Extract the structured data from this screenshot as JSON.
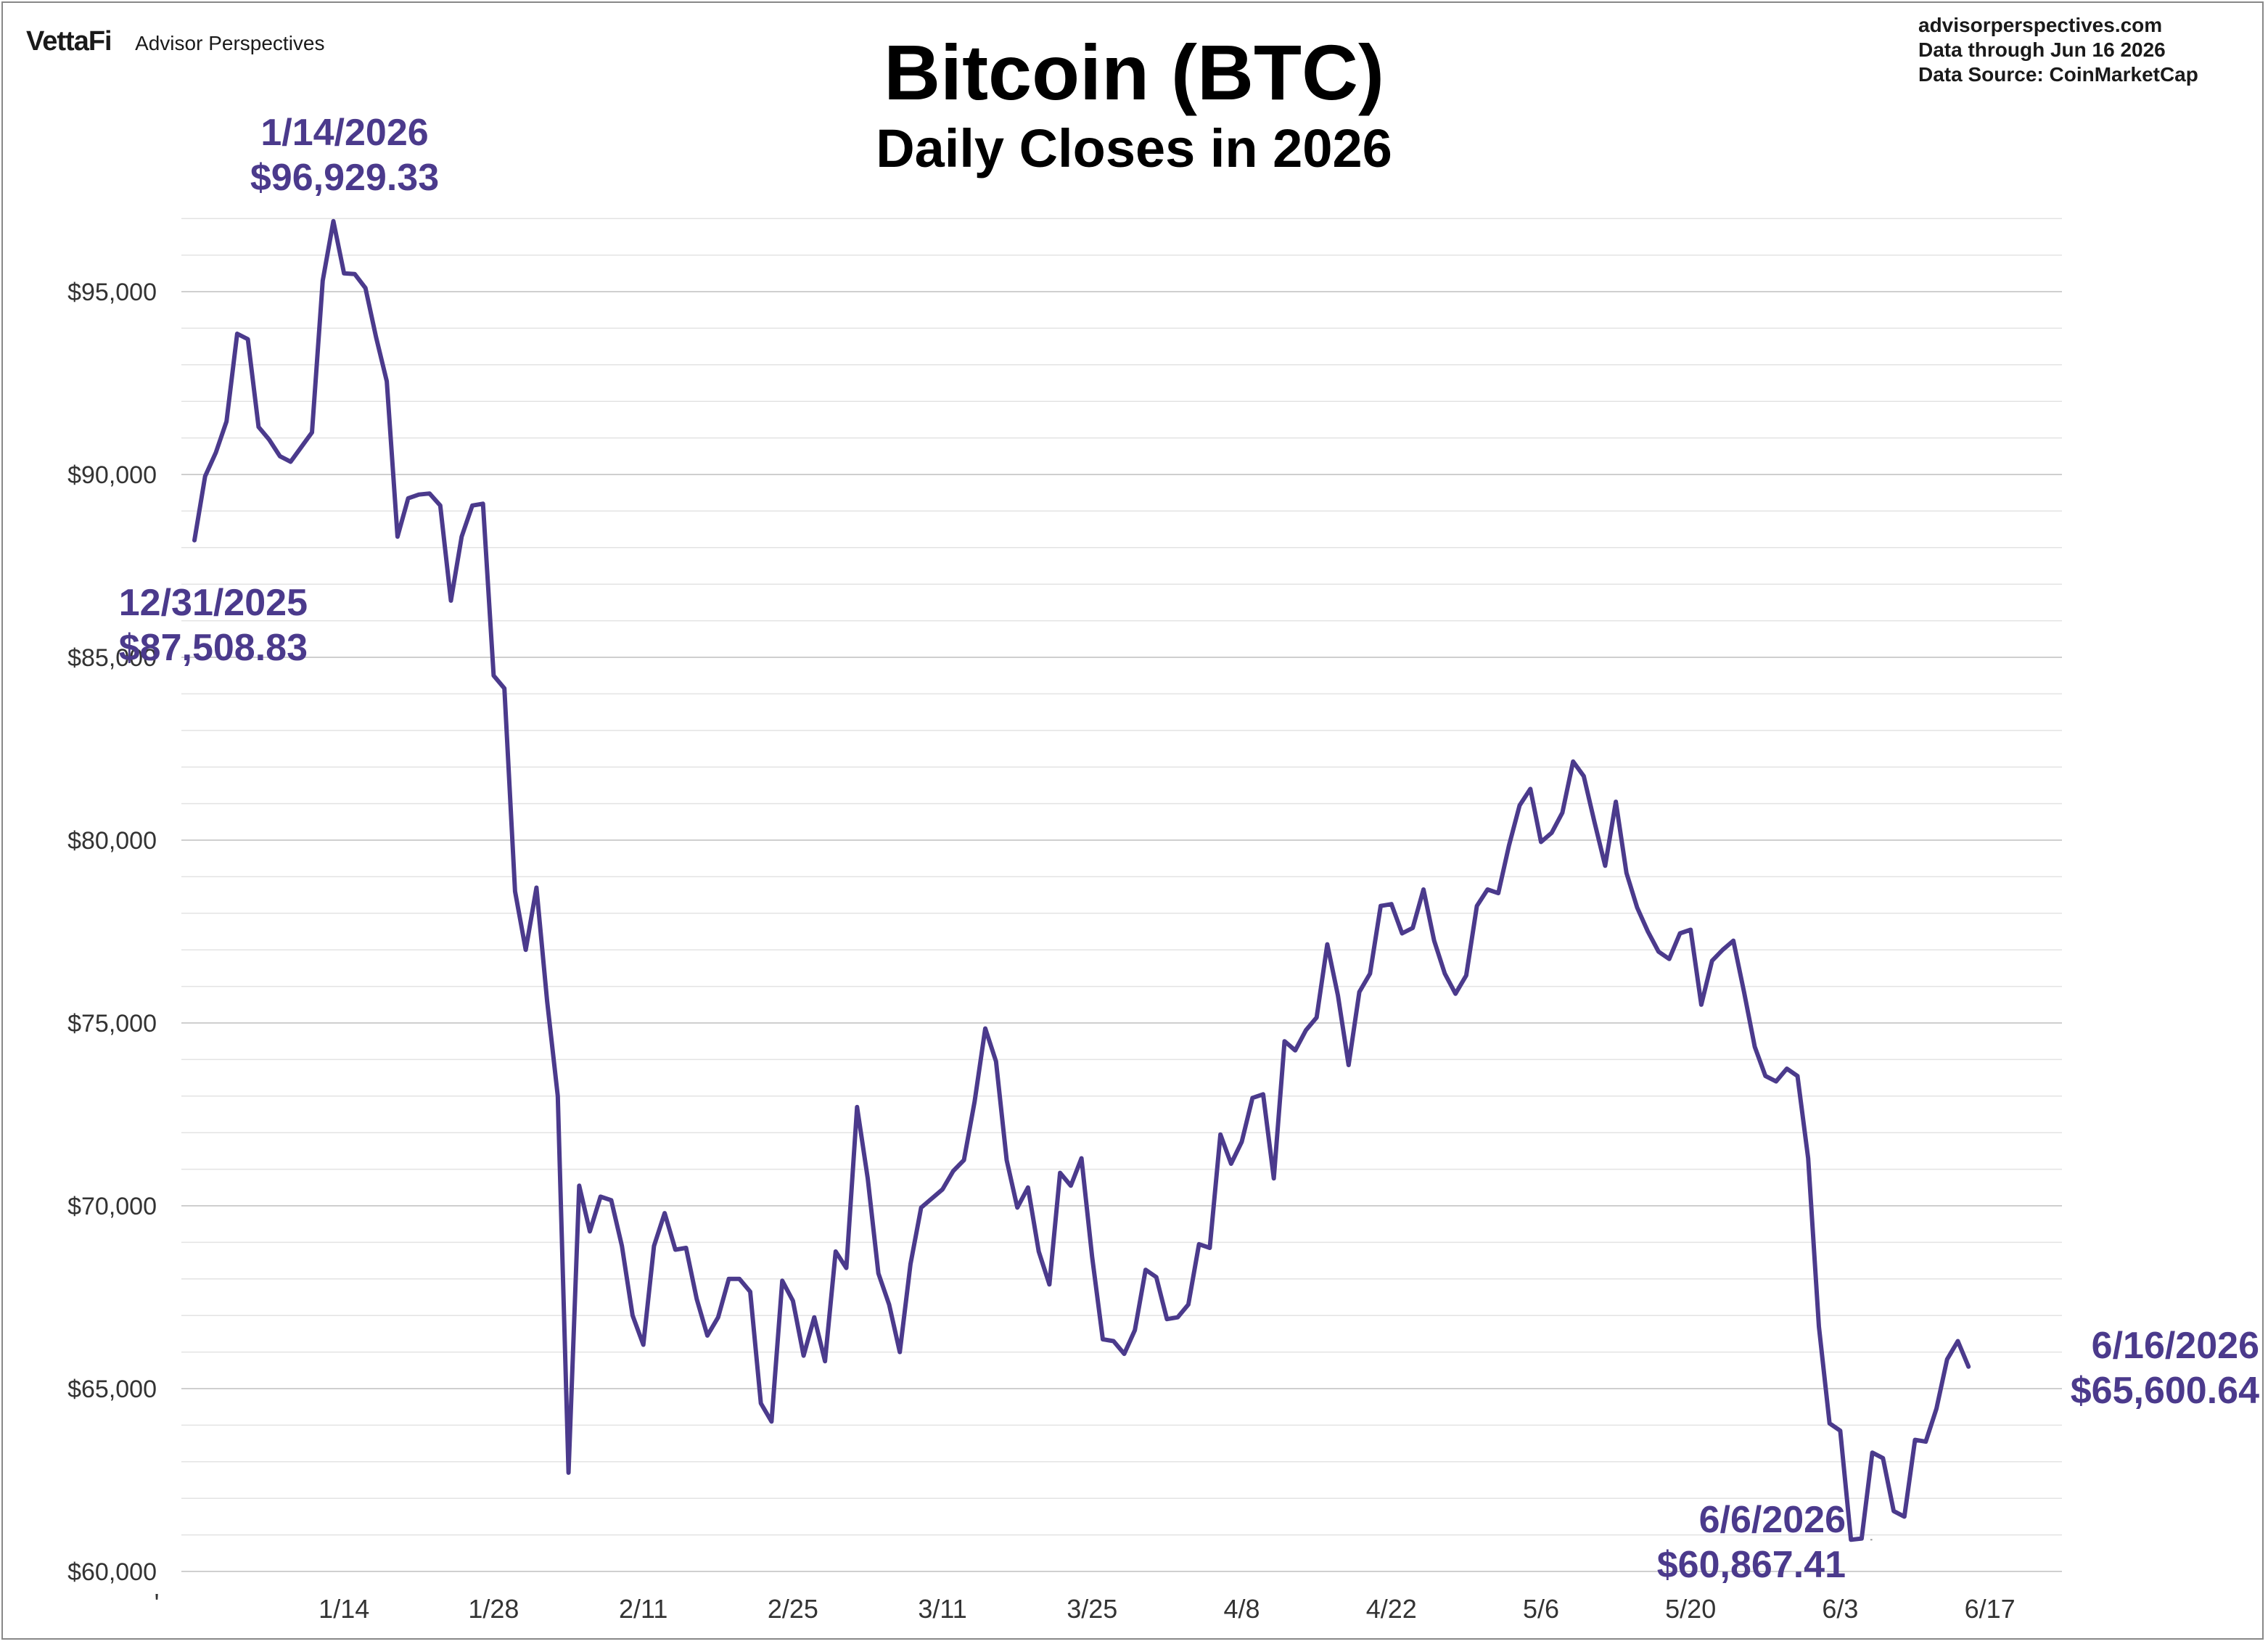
{
  "header": {
    "logo": "VettaFi",
    "brand": "Advisor Perspectives",
    "site": "advisorperspectives.com",
    "data_through": "Data through  Jun 16 2026",
    "data_source": "Data Source:  CoinMarketCap"
  },
  "colors": {
    "line": "#4b3a8c",
    "annotation": "#4b3a8c",
    "grid": "#e3e3e3",
    "grid_major": "#cfcfcf"
  },
  "chart_data": {
    "type": "line",
    "title": "Bitcoin (BTC)",
    "subtitle": "Daily Closes in 2026",
    "xlabel": "",
    "ylabel": "",
    "grid": true,
    "ylim": [
      60000,
      99000
    ],
    "yticks": [
      60000,
      65000,
      70000,
      75000,
      80000,
      85000,
      90000,
      95000
    ],
    "ytick_labels": [
      "$60,000",
      "$65,000",
      "$70,000",
      "$75,000",
      "$80,000",
      "$85,000",
      "$90,000",
      "$95,000"
    ],
    "xticks": [
      "1/14",
      "1/28",
      "2/11",
      "2/25",
      "3/11",
      "3/25",
      "4/8",
      "4/22",
      "5/6",
      "5/20",
      "6/3",
      "6/17"
    ],
    "xtick_days": [
      14,
      28,
      42,
      56,
      70,
      84,
      98,
      112,
      126,
      140,
      154,
      168
    ],
    "x_start_label": "'",
    "series": [
      {
        "start_date": "2025-12-31",
        "values": [
          88200,
          89950,
          90600,
          91450,
          93850,
          93700,
          91300,
          90950,
          90500,
          90350,
          90750,
          91150,
          95300,
          96929.33,
          95500,
          95480,
          95100,
          93750,
          92550,
          88300,
          89350,
          89450,
          89480,
          89150,
          86550,
          88300,
          89150,
          89200,
          84500,
          84150,
          78600,
          77000,
          78700,
          75600,
          73000,
          62700,
          70550,
          69300,
          70250,
          70150,
          68900,
          67000,
          66200,
          68900,
          69800,
          68800,
          68850,
          67450,
          66450,
          66950,
          68000,
          68000,
          67650,
          64600,
          64100,
          67950,
          67400,
          65900,
          66950,
          65750,
          68750,
          68300,
          72700,
          70750,
          68150,
          67300,
          66000,
          68400,
          69950,
          70200,
          70450,
          70950,
          71250,
          72850,
          74850,
          73950,
          71250,
          69950,
          70500,
          68750,
          67850,
          70900,
          70550,
          71300,
          68600,
          66350,
          66300,
          65950,
          66600,
          68250,
          68050,
          66900,
          66950,
          67300,
          68950,
          68850,
          71950,
          71150,
          71750,
          72950,
          73050,
          70750,
          74500,
          74250,
          74800,
          75150,
          77150,
          75750,
          73850,
          75850,
          76350,
          78200,
          78250,
          77450,
          77600,
          78650,
          77250,
          76350,
          75800,
          76300,
          78200,
          78650,
          78550,
          79850,
          80950,
          81400,
          79950,
          80200,
          80750,
          82150,
          81750,
          80500,
          79300,
          81050,
          79100,
          78150,
          77500,
          76950,
          76750,
          77450,
          77550,
          75500,
          76700,
          77000,
          77250,
          75850,
          74350,
          73550,
          73400,
          73750,
          73550,
          71300,
          66700,
          64050,
          63850,
          60867.41,
          60900,
          63250,
          63100,
          61650,
          61500,
          63600,
          63550,
          64450,
          65800,
          66300,
          65600.64
        ]
      }
    ],
    "annotations": [
      {
        "date": "1/14/2026",
        "value": "$96,929.33"
      },
      {
        "date": "12/31/2025",
        "value": "$87,508.83"
      },
      {
        "date": "6/6/2026",
        "value": "$60,867.41"
      },
      {
        "date": "6/16/2026",
        "value": "$65,600.64"
      }
    ]
  }
}
